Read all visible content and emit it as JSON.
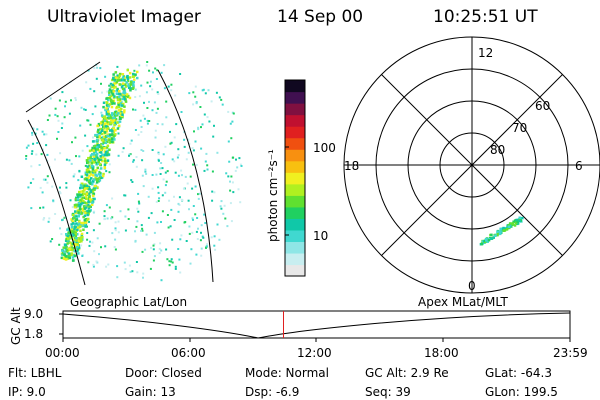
{
  "header": {
    "title": "Ultraviolet Imager",
    "date": "14 Sep 00",
    "time": "10:25:51 UT"
  },
  "colorbar": {
    "unit_label": "photon cm⁻²s⁻¹",
    "ticks": [
      {
        "label": "100",
        "value": 100
      },
      {
        "label": "10",
        "value": 10
      }
    ],
    "colors": [
      "#e8e8e8",
      "#c8eef0",
      "#8fe6e6",
      "#40d8d0",
      "#10c8a8",
      "#20d060",
      "#60e030",
      "#b0f020",
      "#f0f020",
      "#f8c010",
      "#f89010",
      "#f05010",
      "#e02020",
      "#c01030",
      "#801040",
      "#401050",
      "#100820"
    ]
  },
  "polar_plot": {
    "hour_labels": [
      "12",
      "18",
      "6",
      "0"
    ],
    "lat_labels": [
      "60",
      "70",
      "80"
    ]
  },
  "timeline": {
    "left_label": "Geographic Lat/Lon",
    "right_label": "Apex MLat/MLT",
    "axis_title": "GC Alt",
    "y_ticks": [
      "9.0",
      "1.8"
    ],
    "x_ticks": [
      "00:00",
      "06:00",
      "12:00",
      "18:00",
      "23:59"
    ],
    "current_time_fraction": 0.435,
    "marker_color": "#e02020"
  },
  "info": {
    "flt": "Flt: LBHL",
    "ip": "IP:  9.0",
    "door": "Door: Closed",
    "gain": "Gain: 13",
    "mode": "Mode: Normal",
    "dsp": "Dsp:    -6.9",
    "gc_alt": "GC Alt: 2.9 Re",
    "seq": "Seq: 39",
    "glat": "GLat:  -64.3",
    "glon": "GLon: 199.5"
  }
}
